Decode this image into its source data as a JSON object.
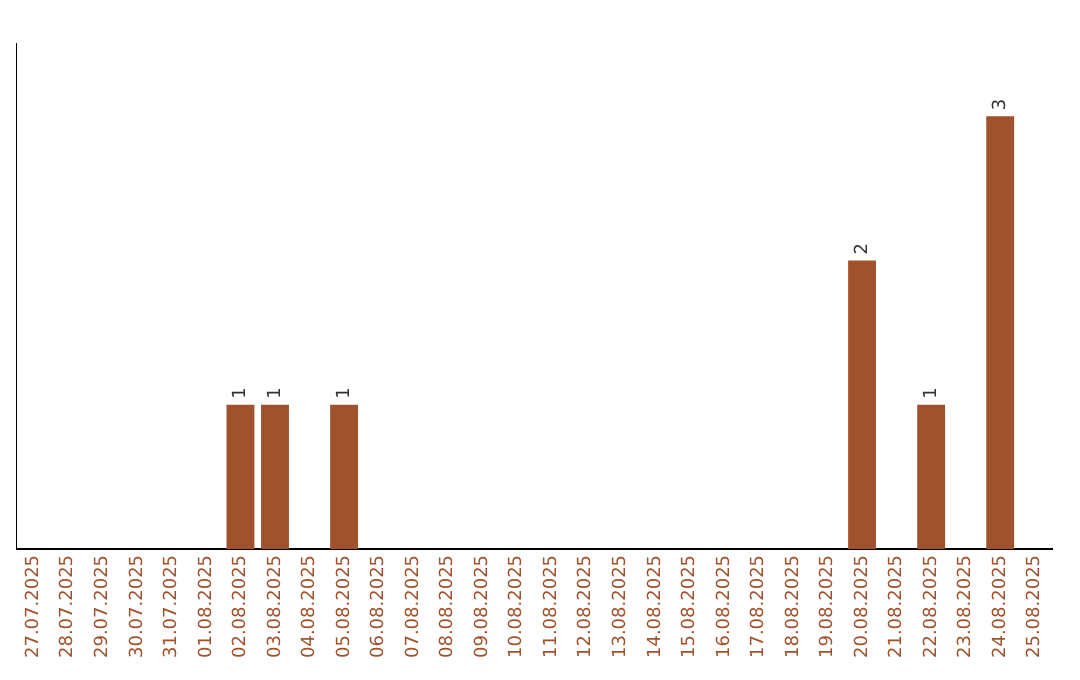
{
  "chart_data": {
    "type": "bar",
    "categories": [
      "27.07.2025",
      "28.07.2025",
      "29.07.2025",
      "30.07.2025",
      "31.07.2025",
      "01.08.2025",
      "02.08.2025",
      "03.08.2025",
      "04.08.2025",
      "05.08.2025",
      "06.08.2025",
      "07.08.2025",
      "08.08.2025",
      "09.08.2025",
      "10.08.2025",
      "11.08.2025",
      "12.08.2025",
      "13.08.2025",
      "14.08.2025",
      "15.08.2025",
      "16.08.2025",
      "17.08.2025",
      "18.08.2025",
      "19.08.2025",
      "20.08.2025",
      "21.08.2025",
      "22.08.2025",
      "23.08.2025",
      "24.08.2025",
      "25.08.2025"
    ],
    "values": [
      0,
      0,
      0,
      0,
      0,
      0,
      1,
      1,
      0,
      1,
      0,
      0,
      0,
      0,
      0,
      0,
      0,
      0,
      0,
      0,
      0,
      0,
      0,
      0,
      2,
      0,
      1,
      0,
      3,
      0
    ],
    "color": "#a0522d",
    "value_labels": [
      null,
      null,
      null,
      null,
      null,
      null,
      "1",
      "1",
      null,
      "1",
      null,
      null,
      null,
      null,
      null,
      null,
      null,
      null,
      null,
      null,
      null,
      null,
      null,
      null,
      "2",
      null,
      "1",
      null,
      "3",
      null
    ],
    "tick_labels": "x",
    "grid": false,
    "legend": false
  }
}
